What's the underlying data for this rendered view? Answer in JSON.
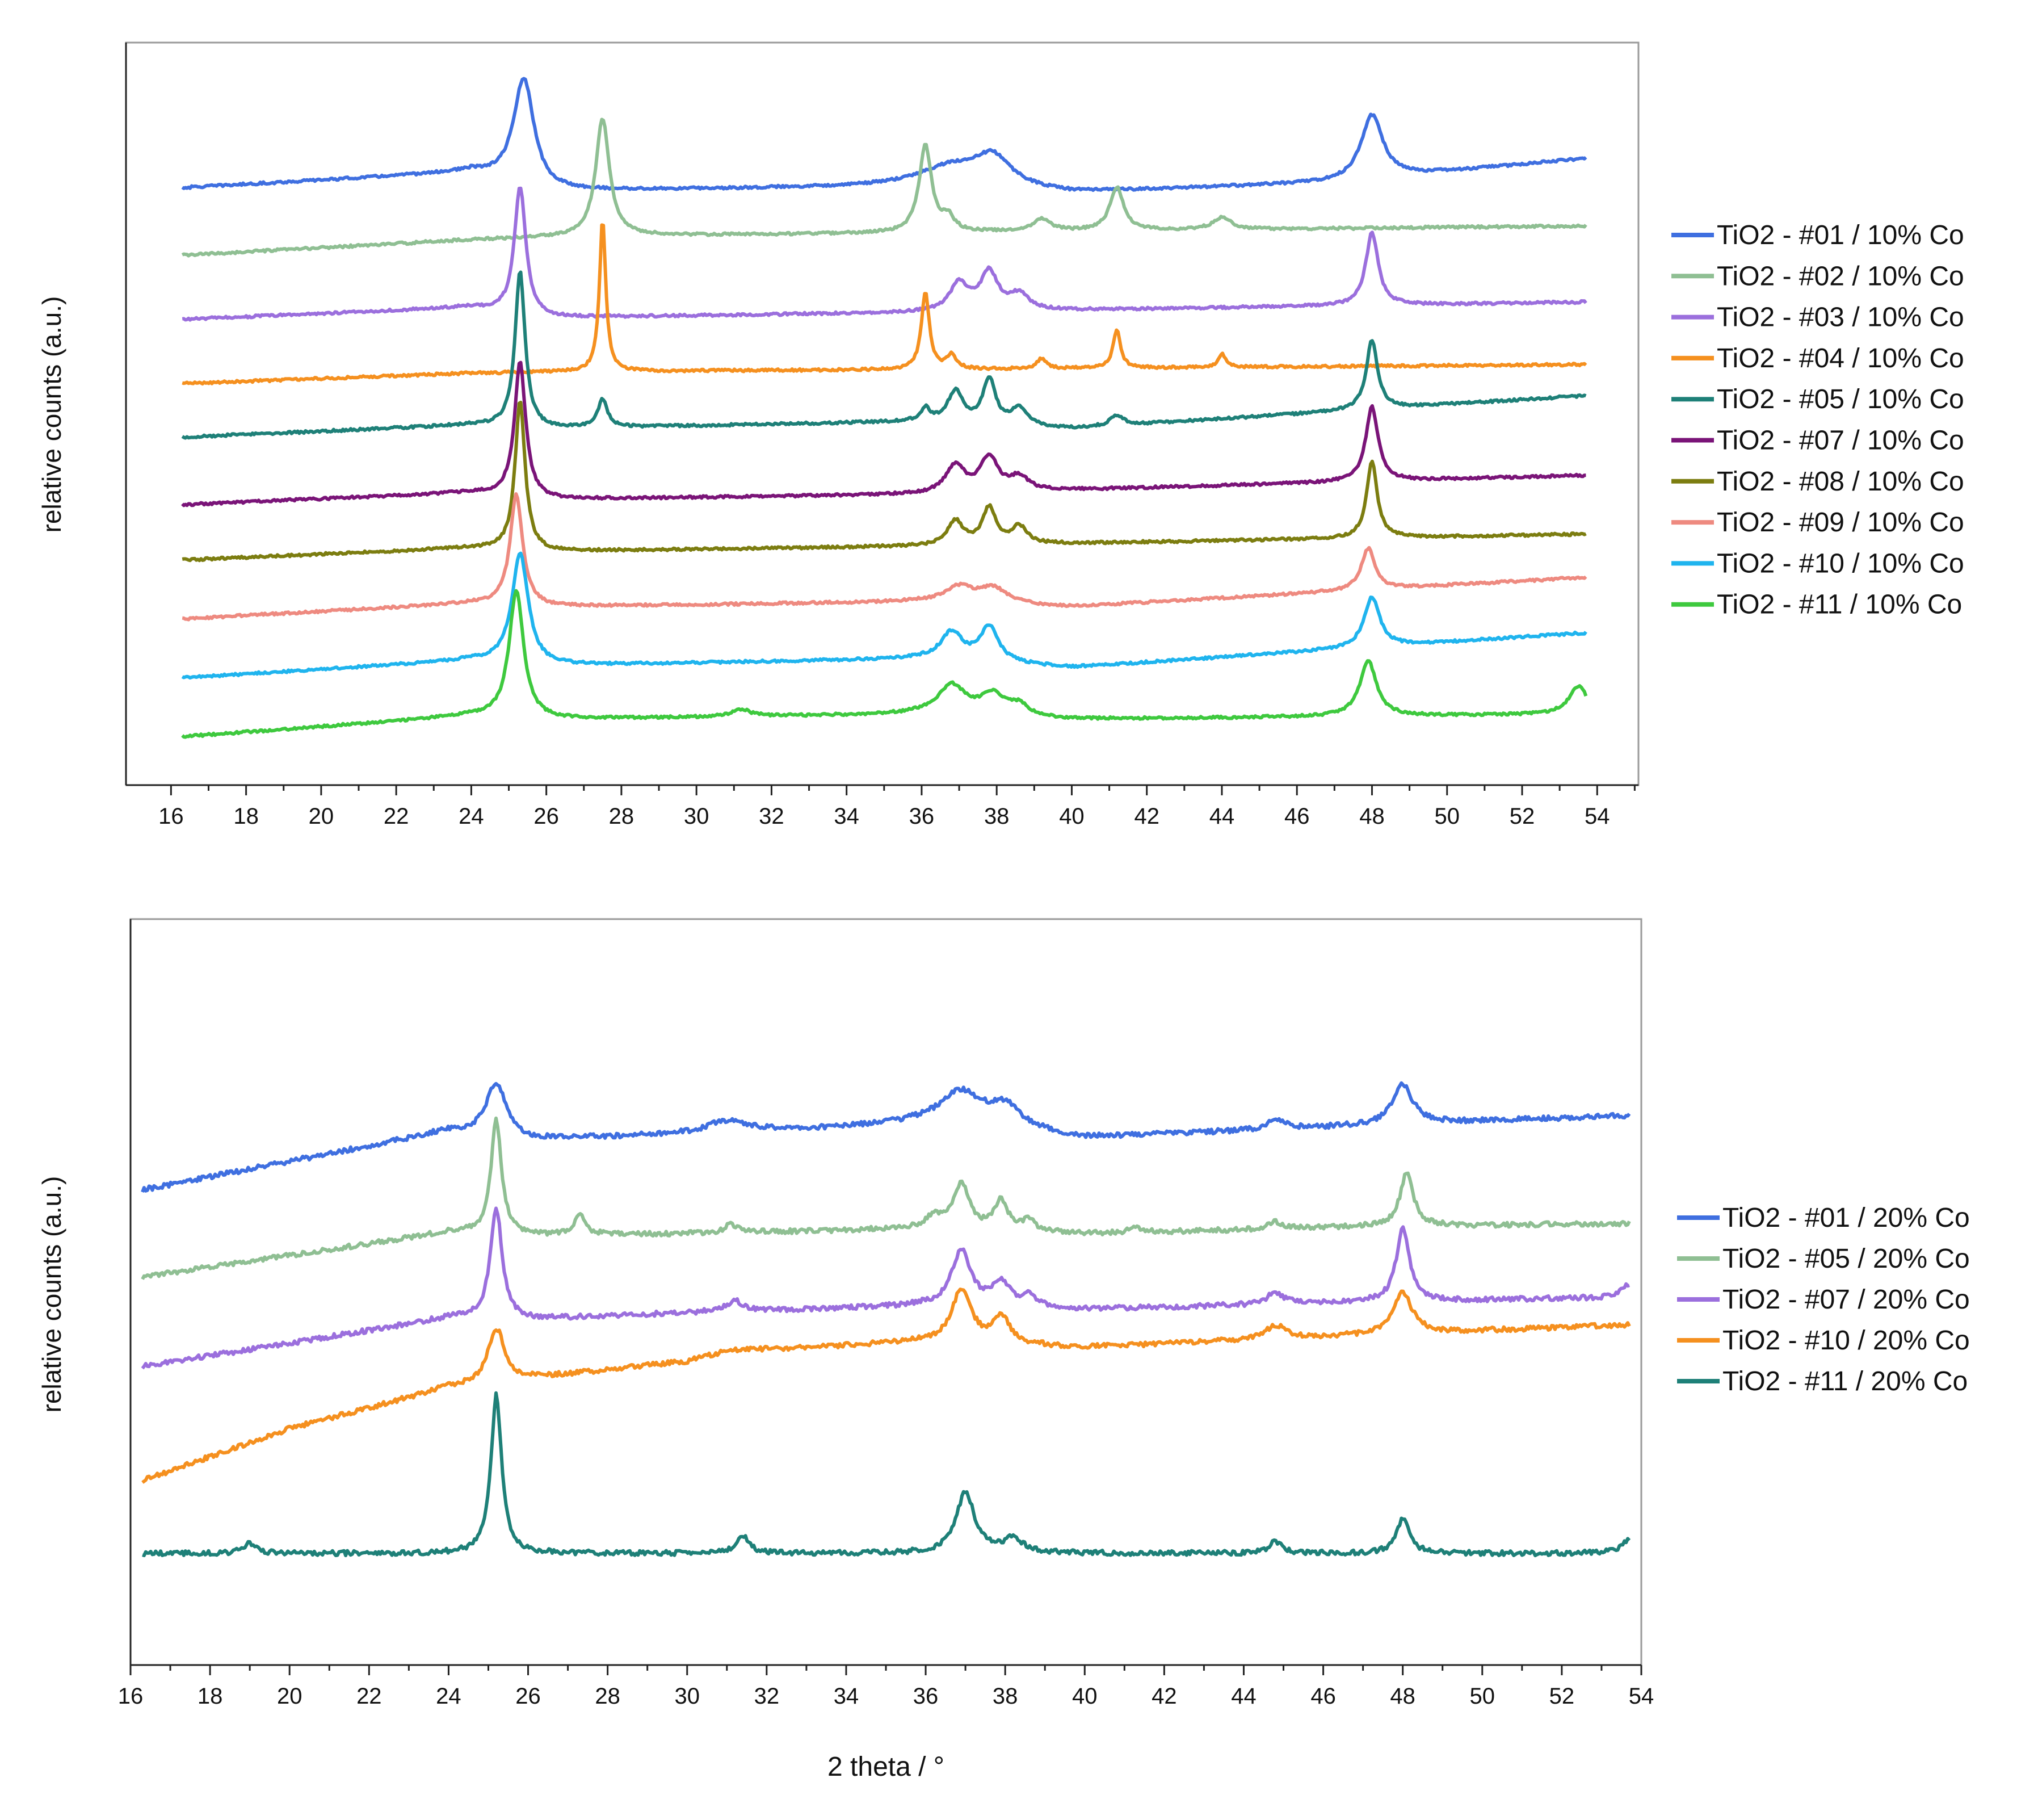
{
  "chart_data": [
    {
      "type": "line",
      "panel": "top",
      "title": "",
      "xlabel": "",
      "ylabel": "relative counts (a.u.)",
      "xlim": [
        14.8,
        55.1
      ],
      "x_range": [
        16.3,
        53.7
      ],
      "xticks": [
        "16",
        "18",
        "20",
        "22",
        "24",
        "26",
        "28",
        "30",
        "32",
        "34",
        "36",
        "38",
        "40",
        "42",
        "44",
        "46",
        "48",
        "50",
        "52",
        "54"
      ],
      "legend_position": "right",
      "grid": false,
      "series": [
        {
          "name": "TiO2 - #01 / 10% Co",
          "color": "#3f6fe0",
          "offset": 0.0,
          "baseline": {
            "x": [
              16.3,
              24,
              26,
              36,
              40,
              47,
              53.7
            ],
            "y": [
              1.1,
              1.55,
              1.0,
              1.15,
              0.95,
              1.25,
              1.95
            ]
          },
          "peaks": [
            {
              "x": 25.4,
              "h": 3.1,
              "w": 0.33
            },
            {
              "x": 36.8,
              "h": 0.55,
              "w": 1.0
            },
            {
              "x": 37.9,
              "h": 0.85,
              "w": 0.6
            },
            {
              "x": 48.0,
              "h": 1.85,
              "w": 0.35
            }
          ]
        },
        {
          "name": "TiO2 - #02 / 10% Co",
          "color": "#8fbf93",
          "offset": -1.85,
          "baseline": {
            "x": [
              16.3,
              24,
              27,
              36,
              53.7
            ],
            "y": [
              1.0,
              1.45,
              1.55,
              1.65,
              1.85
            ]
          },
          "peaks": [
            {
              "x": 27.5,
              "h": 3.4,
              "w": 0.22
            },
            {
              "x": 36.1,
              "h": 2.5,
              "w": 0.2
            },
            {
              "x": 36.7,
              "h": 0.4,
              "w": 0.2
            },
            {
              "x": 39.2,
              "h": 0.35,
              "w": 0.3
            },
            {
              "x": 41.2,
              "h": 1.25,
              "w": 0.22
            },
            {
              "x": 44.0,
              "h": 0.35,
              "w": 0.3
            }
          ]
        },
        {
          "name": "TiO2 - #03 / 10% Co",
          "color": "#9b6fdd",
          "offset": -3.7,
          "baseline": {
            "x": [
              16.3,
              24,
              26,
              36,
              53.7
            ],
            "y": [
              1.0,
              1.35,
              1.05,
              1.2,
              1.5
            ]
          },
          "peaks": [
            {
              "x": 25.3,
              "h": 3.7,
              "w": 0.18
            },
            {
              "x": 37.0,
              "h": 0.8,
              "w": 0.3
            },
            {
              "x": 37.8,
              "h": 1.1,
              "w": 0.28
            },
            {
              "x": 38.6,
              "h": 0.45,
              "w": 0.3
            },
            {
              "x": 48.0,
              "h": 2.1,
              "w": 0.2
            }
          ]
        },
        {
          "name": "TiO2 - #04 / 10% Co",
          "color": "#f5901f",
          "offset": -5.55,
          "baseline": {
            "x": [
              16.3,
              24,
              27,
              36,
              53.7
            ],
            "y": [
              1.0,
              1.3,
              1.35,
              1.4,
              1.55
            ]
          },
          "peaks": [
            {
              "x": 27.5,
              "h": 4.4,
              "w": 0.1
            },
            {
              "x": 36.1,
              "h": 2.2,
              "w": 0.13
            },
            {
              "x": 36.8,
              "h": 0.4,
              "w": 0.15
            },
            {
              "x": 39.2,
              "h": 0.3,
              "w": 0.15
            },
            {
              "x": 41.2,
              "h": 1.1,
              "w": 0.12
            },
            {
              "x": 44.0,
              "h": 0.4,
              "w": 0.12
            }
          ]
        },
        {
          "name": "TiO2 - #05 / 10% Co",
          "color": "#1e8078",
          "offset": -7.1,
          "baseline": {
            "x": [
              16.3,
              24,
              26,
              36,
              40,
              53.7
            ],
            "y": [
              1.0,
              1.35,
              1.25,
              1.45,
              1.25,
              2.2
            ]
          },
          "peaks": [
            {
              "x": 25.3,
              "h": 4.5,
              "w": 0.16
            },
            {
              "x": 27.5,
              "h": 0.8,
              "w": 0.15
            },
            {
              "x": 36.1,
              "h": 0.35,
              "w": 0.15
            },
            {
              "x": 36.9,
              "h": 0.9,
              "w": 0.25
            },
            {
              "x": 37.8,
              "h": 1.3,
              "w": 0.2
            },
            {
              "x": 38.6,
              "h": 0.5,
              "w": 0.25
            },
            {
              "x": 41.2,
              "h": 0.3,
              "w": 0.2
            },
            {
              "x": 48.0,
              "h": 2.0,
              "w": 0.18
            }
          ]
        },
        {
          "name": "TiO2 - #07 / 10% Co",
          "color": "#7a1478",
          "offset": -9.05,
          "baseline": {
            "x": [
              16.3,
              24,
              26,
              36,
              53.7
            ],
            "y": [
              1.0,
              1.35,
              1.15,
              1.3,
              1.85
            ]
          },
          "peaks": [
            {
              "x": 25.3,
              "h": 3.9,
              "w": 0.18
            },
            {
              "x": 36.9,
              "h": 0.8,
              "w": 0.3
            },
            {
              "x": 37.8,
              "h": 1.0,
              "w": 0.28
            },
            {
              "x": 38.6,
              "h": 0.4,
              "w": 0.3
            },
            {
              "x": 48.0,
              "h": 2.15,
              "w": 0.2
            }
          ]
        },
        {
          "name": "TiO2 - #08 / 10% Co",
          "color": "#7c7d10",
          "offset": -10.65,
          "baseline": {
            "x": [
              16.3,
              24,
              26,
              36,
              53.7
            ],
            "y": [
              1.0,
              1.35,
              1.25,
              1.4,
              1.75
            ]
          },
          "peaks": [
            {
              "x": 25.3,
              "h": 4.3,
              "w": 0.16
            },
            {
              "x": 36.9,
              "h": 0.7,
              "w": 0.25
            },
            {
              "x": 37.8,
              "h": 1.05,
              "w": 0.22
            },
            {
              "x": 38.6,
              "h": 0.5,
              "w": 0.25
            },
            {
              "x": 48.0,
              "h": 2.2,
              "w": 0.17
            }
          ]
        },
        {
          "name": "TiO2 - #09 / 10% Co",
          "color": "#ee8a80",
          "offset": -12.35,
          "baseline": {
            "x": [
              16.3,
              24,
              26,
              36,
              40,
              53.7
            ],
            "y": [
              1.0,
              1.45,
              1.35,
              1.5,
              1.35,
              2.2
            ]
          },
          "peaks": [
            {
              "x": 25.2,
              "h": 3.2,
              "w": 0.2
            },
            {
              "x": 37.0,
              "h": 0.45,
              "w": 0.45
            },
            {
              "x": 37.9,
              "h": 0.45,
              "w": 0.45
            },
            {
              "x": 47.9,
              "h": 1.2,
              "w": 0.22
            }
          ]
        },
        {
          "name": "TiO2 - #10 / 10% Co",
          "color": "#1fb4ee",
          "offset": -14.05,
          "baseline": {
            "x": [
              16.3,
              24,
              26,
              36,
              40,
              53.7
            ],
            "y": [
              1.0,
              1.5,
              1.35,
              1.55,
              1.3,
              2.3
            ]
          },
          "peaks": [
            {
              "x": 25.3,
              "h": 3.2,
              "w": 0.26
            },
            {
              "x": 36.8,
              "h": 0.8,
              "w": 0.35
            },
            {
              "x": 37.8,
              "h": 1.0,
              "w": 0.3
            },
            {
              "x": 48.0,
              "h": 1.45,
              "w": 0.25
            }
          ]
        },
        {
          "name": "TiO2 - #11 / 10% Co",
          "color": "#3ec93e",
          "offset": -15.75,
          "baseline": {
            "x": [
              16.3,
              24,
              26,
              36,
              40,
              53.7
            ],
            "y": [
              1.0,
              1.6,
              1.5,
              1.65,
              1.5,
              1.65
            ]
          },
          "peaks": [
            {
              "x": 25.2,
              "h": 3.7,
              "w": 0.23
            },
            {
              "x": 31.2,
              "h": 0.2,
              "w": 0.3
            },
            {
              "x": 36.8,
              "h": 0.85,
              "w": 0.45
            },
            {
              "x": 37.9,
              "h": 0.6,
              "w": 0.4
            },
            {
              "x": 38.6,
              "h": 0.3,
              "w": 0.3
            },
            {
              "x": 47.9,
              "h": 1.6,
              "w": 0.27
            },
            {
              "x": 53.5,
              "h": 0.8,
              "w": 0.3
            }
          ]
        }
      ]
    },
    {
      "type": "line",
      "panel": "bottom",
      "title": "",
      "xlabel": "2 theta / °",
      "ylabel": "relative counts (a.u.)",
      "xlim": [
        16,
        54
      ],
      "x_range": [
        16.3,
        53.7
      ],
      "xticks": [
        "16",
        "18",
        "20",
        "22",
        "24",
        "26",
        "28",
        "30",
        "32",
        "34",
        "36",
        "38",
        "40",
        "42",
        "44",
        "46",
        "48",
        "50",
        "52",
        "54"
      ],
      "legend_position": "right",
      "grid": false,
      "series": [
        {
          "name": "TiO2 - #01 / 20% Co",
          "color": "#3f6fe0",
          "offset": 0.0,
          "baseline": {
            "x": [
              16.3,
              24,
              26,
              30,
              34,
              36,
              40,
              47,
              53.7
            ],
            "y": [
              1.0,
              2.7,
              2.45,
              2.6,
              2.8,
              2.95,
              2.5,
              2.85,
              3.15
            ]
          },
          "peaks": [
            {
              "x": 25.2,
              "h": 1.55,
              "w": 0.3
            },
            {
              "x": 31.0,
              "h": 0.35,
              "w": 0.6
            },
            {
              "x": 36.9,
              "h": 0.95,
              "w": 0.6
            },
            {
              "x": 38.0,
              "h": 0.65,
              "w": 0.5
            },
            {
              "x": 44.8,
              "h": 0.3,
              "w": 0.25
            },
            {
              "x": 48.0,
              "h": 1.15,
              "w": 0.3
            }
          ]
        },
        {
          "name": "TiO2 - #05 / 20% Co",
          "color": "#8fbf93",
          "offset": -2.52,
          "baseline": {
            "x": [
              16.3,
              24,
              26,
              30,
              36,
              40,
              47,
              53.7
            ],
            "y": [
              1.0,
              2.3,
              2.2,
              2.25,
              2.4,
              2.25,
              2.45,
              2.55
            ]
          },
          "peaks": [
            {
              "x": 25.2,
              "h": 3.3,
              "w": 0.16
            },
            {
              "x": 27.3,
              "h": 0.65,
              "w": 0.15
            },
            {
              "x": 31.1,
              "h": 0.25,
              "w": 0.2
            },
            {
              "x": 36.2,
              "h": 0.35,
              "w": 0.2
            },
            {
              "x": 36.9,
              "h": 1.3,
              "w": 0.25
            },
            {
              "x": 37.9,
              "h": 0.85,
              "w": 0.2
            },
            {
              "x": 38.6,
              "h": 0.3,
              "w": 0.2
            },
            {
              "x": 41.3,
              "h": 0.15,
              "w": 0.2
            },
            {
              "x": 44.8,
              "h": 0.2,
              "w": 0.2
            },
            {
              "x": 48.1,
              "h": 1.55,
              "w": 0.2
            }
          ]
        },
        {
          "name": "TiO2 - #07 / 20% Co",
          "color": "#9b6fdd",
          "offset": -5.1,
          "baseline": {
            "x": [
              16.3,
              24,
              26,
              30,
              36,
              40,
              47,
              53.7
            ],
            "y": [
              1.0,
              2.4,
              2.35,
              2.55,
              2.75,
              2.65,
              2.85,
              3.0
            ]
          },
          "peaks": [
            {
              "x": 25.2,
              "h": 3.2,
              "w": 0.18
            },
            {
              "x": 31.2,
              "h": 0.3,
              "w": 0.25
            },
            {
              "x": 36.9,
              "h": 1.6,
              "w": 0.3
            },
            {
              "x": 37.9,
              "h": 0.7,
              "w": 0.25
            },
            {
              "x": 38.6,
              "h": 0.3,
              "w": 0.25
            },
            {
              "x": 44.8,
              "h": 0.35,
              "w": 0.25
            },
            {
              "x": 48.0,
              "h": 2.1,
              "w": 0.2
            },
            {
              "x": 53.7,
              "h": 0.4,
              "w": 0.2
            }
          ]
        },
        {
          "name": "TiO2 - #10 / 20% Co",
          "color": "#f5901f",
          "offset": -8.4,
          "baseline": {
            "x": [
              16.3,
              20,
              24,
              26,
              30,
              31,
              36,
              40,
              47,
              53.7
            ],
            "y": [
              1.0,
              2.5,
              3.7,
              3.95,
              4.45,
              4.75,
              5.0,
              4.85,
              5.2,
              5.5
            ]
          },
          "peaks": [
            {
              "x": 25.2,
              "h": 1.55,
              "w": 0.25
            },
            {
              "x": 36.9,
              "h": 1.55,
              "w": 0.3
            },
            {
              "x": 37.9,
              "h": 0.8,
              "w": 0.25
            },
            {
              "x": 44.8,
              "h": 0.4,
              "w": 0.3
            },
            {
              "x": 48.0,
              "h": 1.2,
              "w": 0.28
            }
          ]
        },
        {
          "name": "TiO2 - #11 / 20% Co",
          "color": "#1e8078",
          "offset": -11.0,
          "baseline": {
            "x": [
              16.0,
              54.0
            ],
            "y": [
              1.5,
              1.5
            ]
          },
          "peaks": [
            {
              "x": 19.0,
              "h": 0.3,
              "w": 0.2
            },
            {
              "x": 25.2,
              "h": 4.6,
              "w": 0.16
            },
            {
              "x": 31.4,
              "h": 0.5,
              "w": 0.2
            },
            {
              "x": 37.0,
              "h": 1.75,
              "w": 0.28
            },
            {
              "x": 38.2,
              "h": 0.4,
              "w": 0.3
            },
            {
              "x": 44.8,
              "h": 0.35,
              "w": 0.2
            },
            {
              "x": 48.0,
              "h": 1.0,
              "w": 0.2
            },
            {
              "x": 53.7,
              "h": 0.4,
              "w": 0.25
            }
          ]
        }
      ]
    }
  ]
}
